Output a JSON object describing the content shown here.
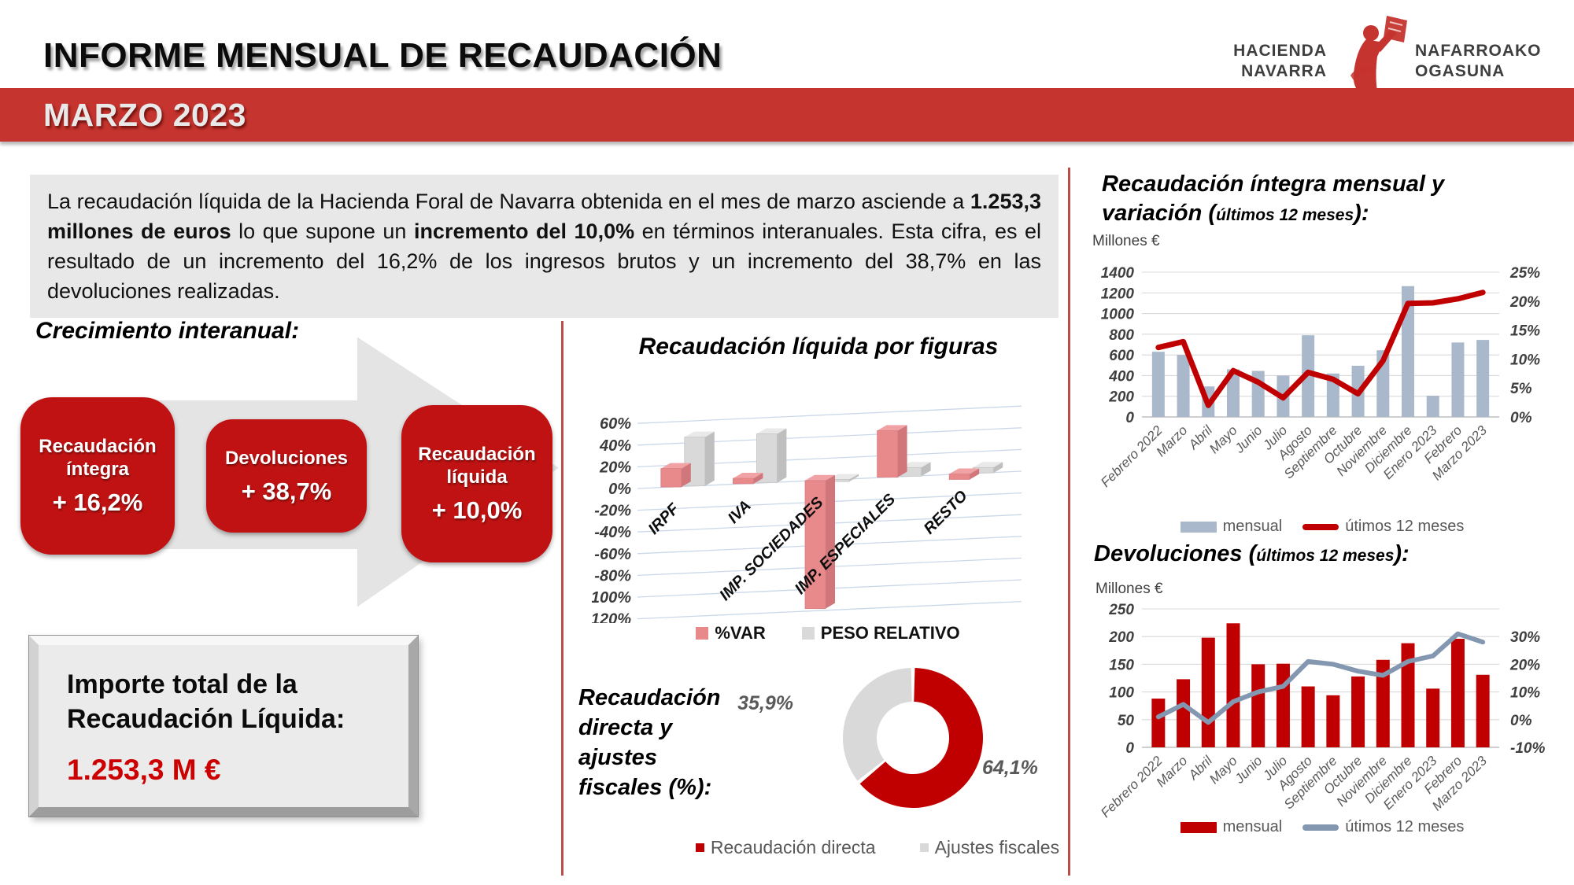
{
  "header": {
    "title": "INFORME MENSUAL DE RECAUDACIÓN",
    "banner": "MARZO 2023",
    "logo": {
      "left1": "HACIENDA",
      "left2": "NAVARRA",
      "right1": "NAFARROAKO",
      "right2": "OGASUNA"
    }
  },
  "intro": {
    "segments": [
      "La recaudación líquida de la Hacienda Foral de Navarra obtenida en el mes de marzo asciende a ",
      "1.253,3 millones de euros",
      " lo que supone un ",
      "incremento del 10,0%",
      " en términos interanuales. Esta cifra, es el resultado de un incremento del 16,2% de los ingresos brutos y un incremento del 38,7% en las devoluciones realizadas."
    ]
  },
  "growth": {
    "heading": "Crecimiento interanual:",
    "boxes": [
      {
        "label": "Recaudación íntegra",
        "value": "+ 16,2%"
      },
      {
        "label": "Devoluciones",
        "value": "+ 38,7%"
      },
      {
        "label": "Recaudación líquida",
        "value": "+ 10,0%"
      }
    ]
  },
  "total_box": {
    "line1": "Importe total de la",
    "line2": "Recaudación Líquida:",
    "amount": "1.253,3 M €"
  },
  "colors": {
    "banner_red": "#C5342E",
    "box_red": "#C01212",
    "chart_red": "#C00000",
    "salmon": "#E8898B",
    "light_gray": "#D9D9D9",
    "blue_gray_bar": "#A9B8CB",
    "gray_line": "#8497B0",
    "divider_red": "#BE4B48"
  },
  "chart_data": [
    {
      "id": "figuras",
      "type": "bar",
      "style": "3d",
      "title": "Recaudación líquida por figuras",
      "categories": [
        "IRPF",
        "IVA",
        "IMP. SOCIEDADES",
        "IMP. ESPECIALES",
        "RESTO"
      ],
      "series": [
        {
          "name": "%VAR",
          "color": "#E8898B",
          "side_color": "#D1767A",
          "top_color": "#F0A2A4",
          "edge_color": "#D98184",
          "values": [
            17,
            5,
            -118,
            43,
            -5
          ]
        },
        {
          "name": "PESO RELATIVO",
          "color": "#D9D9D9",
          "side_color": "#BFBFBF",
          "top_color": "#E9E9E9",
          "edge_color": "#C6C6C6",
          "values": [
            45,
            45,
            -2,
            8,
            5
          ]
        }
      ],
      "ylim": [
        -120,
        60
      ],
      "ytick_step": 20,
      "ytick_format": "percent",
      "legend_position": "bottom",
      "grid": true
    },
    {
      "id": "integra",
      "type": "bar+line",
      "title_line1": "Recaudación íntegra mensual y",
      "title_line2_prefix": "variación (",
      "title_line2_small": "últimos 12 meses",
      "title_line2_suffix": "):",
      "unit_label": "Millones €",
      "categories": [
        "Febrero 2022",
        "Marzo",
        "Abril",
        "Mayo",
        "Junio",
        "Julio",
        "Agosto",
        "Septiembre",
        "Octubre",
        "Noviembre",
        "Diciembre",
        "Enero 2023",
        "Febrero",
        "Marzo 2023"
      ],
      "bar_series": {
        "name": "mensual",
        "color": "#A9B8CB",
        "values": [
          630,
          600,
          295,
          460,
          445,
          400,
          790,
          420,
          495,
          645,
          1265,
          205,
          720,
          745
        ]
      },
      "line_series": {
        "name": "útimos 12 meses",
        "color": "#C00000",
        "values": [
          12,
          13,
          2,
          8,
          6,
          3.3,
          7.7,
          6.5,
          4,
          9.7,
          19.6,
          19.7,
          20.4,
          21.5
        ]
      },
      "left_axis": {
        "min": 0,
        "max": 1400,
        "step": 200
      },
      "right_axis": {
        "min": 0,
        "max": 25,
        "step": 5,
        "format": "percent",
        "span_frac": 1
      },
      "legend_position": "bottom",
      "grid": true
    },
    {
      "id": "directa",
      "type": "pie",
      "labels": [
        "Recaudación directa",
        "Ajustes fiscales"
      ],
      "values": [
        64.1,
        35.9
      ],
      "value_labels": [
        "64,1%",
        "35,9%"
      ],
      "colors": [
        "#C00000",
        "#D9D9D9"
      ],
      "side_label_lines": [
        "Recaudación",
        "directa y",
        "ajustes",
        "fiscales (%):"
      ],
      "legend_position": "bottom"
    },
    {
      "id": "devoluciones",
      "type": "bar+line",
      "title_prefix": "Devoluciones (",
      "title_small": "últimos 12 meses",
      "title_suffix": "):",
      "unit_label": "Millones €",
      "categories": [
        "Febrero 2022",
        "Marzo",
        "Abril",
        "Mayo",
        "Junio",
        "Julio",
        "Agosto",
        "Septiembre",
        "Octubre",
        "Noviembre",
        "Diciembre",
        "Enero 2023",
        "Febrero",
        "Marzo 2023"
      ],
      "bar_series": {
        "name": "mensual",
        "color": "#C00000",
        "values": [
          88,
          123,
          198,
          224,
          150,
          151,
          110,
          94,
          128,
          158,
          188,
          106,
          196,
          131
        ]
      },
      "line_series": {
        "name": "útimos 12 meses",
        "color": "#8497B0",
        "values": [
          1,
          5.5,
          -1,
          6.5,
          10,
          12,
          21,
          20,
          17.5,
          16,
          21,
          23,
          31,
          28
        ]
      },
      "left_axis": {
        "min": 0,
        "max": 250,
        "step": 50
      },
      "right_axis": {
        "min": -10,
        "max": 30,
        "step": 10,
        "format": "percent",
        "span_frac": 0.8
      },
      "legend_position": "bottom",
      "grid": true
    }
  ]
}
